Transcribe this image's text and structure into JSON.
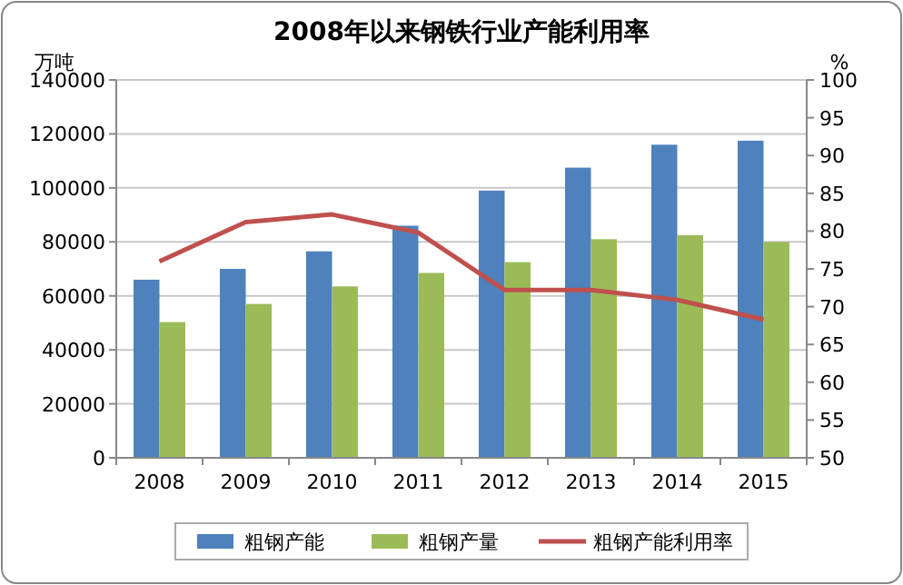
{
  "chart_data": {
    "type": "bar",
    "title": "2008年以来钢铁行业产能利用率",
    "ylabel": "万吨",
    "y2label": "%",
    "categories": [
      "2008",
      "2009",
      "2010",
      "2011",
      "2012",
      "2013",
      "2014",
      "2015"
    ],
    "series": [
      {
        "name": "粗钢产能",
        "color": "#4f81bd",
        "values": [
          66000,
          70000,
          76500,
          86000,
          99000,
          107500,
          116000,
          117500
        ]
      },
      {
        "name": "粗钢产量",
        "color": "#9bbb59",
        "values": [
          50300,
          57000,
          63500,
          68500,
          72500,
          81000,
          82500,
          80000
        ]
      },
      {
        "name": "粗钢产能利用率",
        "type": "line",
        "axis": "y2",
        "color": "#c0504d",
        "values": [
          76,
          81.2,
          82.2,
          79.8,
          72.2,
          72.2,
          70.9,
          68.3
        ]
      }
    ],
    "ylim": [
      0,
      140000
    ],
    "yticks": [
      0,
      20000,
      40000,
      60000,
      80000,
      100000,
      120000,
      140000
    ],
    "y2lim": [
      50,
      100
    ],
    "y2ticks": [
      50,
      55,
      60,
      65,
      70,
      75,
      80,
      85,
      90,
      95,
      100
    ],
    "grid": "y",
    "legend": "bottom"
  }
}
